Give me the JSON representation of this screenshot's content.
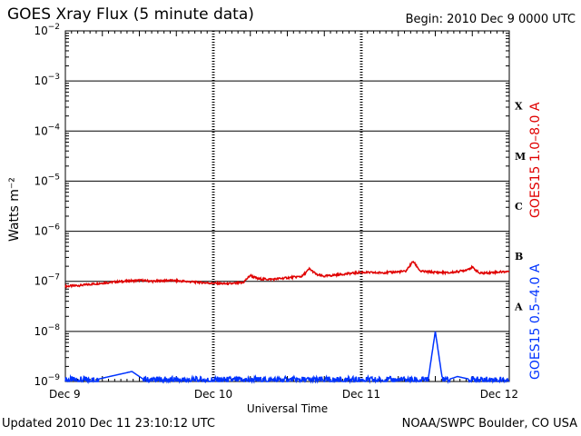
{
  "header": {
    "title": "GOES Xray Flux (5 minute data)",
    "begin": "Begin:  2010 Dec 9 0000 UTC"
  },
  "footer": {
    "updated": "Updated 2010 Dec 11 23:10:12 UTC",
    "credit": "NOAA/SWPC Boulder, CO USA"
  },
  "colors": {
    "long": "#e00000",
    "short": "#0033ff",
    "axis": "#000000"
  },
  "chart_data": {
    "type": "line",
    "title": "GOES Xray Flux (5 minute data)",
    "xlabel": "Universal Time",
    "ylabel": "Watts m⁻²",
    "yscale": "log",
    "ylim": [
      1e-09,
      0.01
    ],
    "y_tick_labels": [
      {
        "base": "10",
        "exp": "−9",
        "value": -9
      },
      {
        "base": "10",
        "exp": "−8",
        "value": -8
      },
      {
        "base": "10",
        "exp": "−7",
        "value": -7
      },
      {
        "base": "10",
        "exp": "−6",
        "value": -6
      },
      {
        "base": "10",
        "exp": "−5",
        "value": -5
      },
      {
        "base": "10",
        "exp": "−4",
        "value": -4
      },
      {
        "base": "10",
        "exp": "−3",
        "value": -3
      },
      {
        "base": "10",
        "exp": "−2",
        "value": -2
      }
    ],
    "x_tick_labels": [
      "Dec 9",
      "Dec 10",
      "Dec 11",
      "Dec 12"
    ],
    "flare_classes": [
      {
        "label": "X",
        "log_center": -3.5
      },
      {
        "label": "M",
        "log_center": -4.5
      },
      {
        "label": "C",
        "log_center": -5.5
      },
      {
        "label": "B",
        "log_center": -6.5
      },
      {
        "label": "A",
        "log_center": -7.5
      }
    ],
    "grid": true,
    "series": [
      {
        "name": "GOES15 1.0–8.0 A",
        "color": "#e00000",
        "x_days": [
          0,
          0.1,
          0.2,
          0.3,
          0.4,
          0.5,
          0.6,
          0.7,
          0.8,
          0.9,
          1.0,
          1.1,
          1.2,
          1.25,
          1.3,
          1.4,
          1.5,
          1.6,
          1.65,
          1.7,
          1.75,
          1.8,
          1.9,
          2.0,
          2.1,
          2.2,
          2.3,
          2.35,
          2.4,
          2.5,
          2.6,
          2.7,
          2.75,
          2.8,
          2.9,
          3.0
        ],
        "log_flux": [
          -7.1,
          -7.08,
          -7.05,
          -7.02,
          -7.0,
          -6.98,
          -7.0,
          -6.98,
          -7.0,
          -7.02,
          -7.04,
          -7.05,
          -7.03,
          -6.88,
          -6.95,
          -6.96,
          -6.93,
          -6.9,
          -6.75,
          -6.87,
          -6.9,
          -6.88,
          -6.85,
          -6.82,
          -6.83,
          -6.82,
          -6.8,
          -6.6,
          -6.8,
          -6.82,
          -6.83,
          -6.78,
          -6.72,
          -6.84,
          -6.82,
          -6.8
        ]
      },
      {
        "name": "GOES15 0.5–4.0 A",
        "color": "#0033ff",
        "x_days": [
          0,
          0.15,
          0.3,
          0.45,
          0.5,
          0.55,
          0.7,
          0.9,
          1.1,
          1.3,
          1.45,
          1.6,
          1.8,
          2.0,
          2.2,
          2.35,
          2.45,
          2.5,
          2.55,
          2.65,
          2.8,
          3.0
        ],
        "log_flux": [
          -9.0,
          -9.0,
          -8.9,
          -8.8,
          -8.9,
          -9.0,
          -9.0,
          -9.0,
          -9.0,
          -9.0,
          -9.0,
          -9.0,
          -9.0,
          -9.0,
          -9.0,
          -9.0,
          -9.0,
          -8.0,
          -9.0,
          -8.9,
          -9.0,
          -9.0
        ]
      }
    ]
  }
}
